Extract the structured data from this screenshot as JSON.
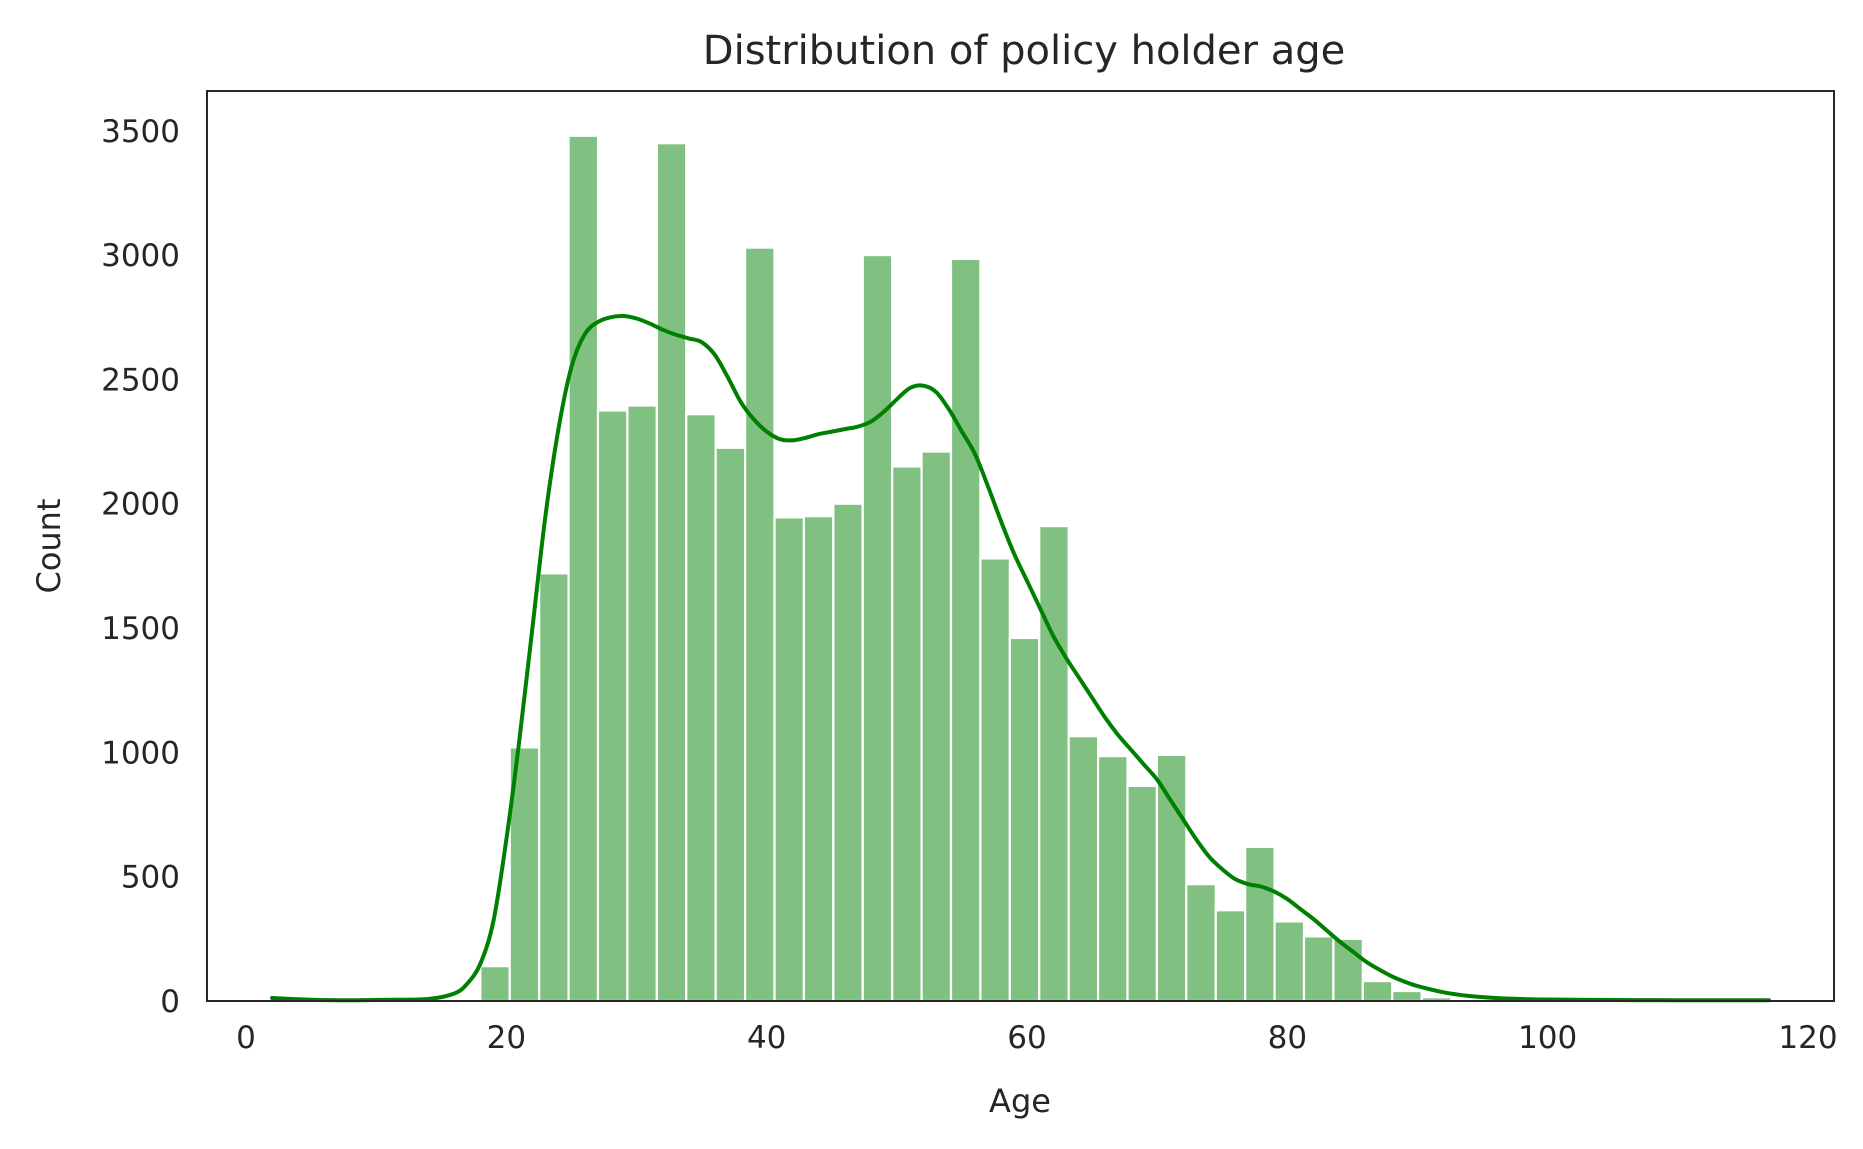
{
  "chart_data": {
    "type": "bar",
    "title": "Distribution of policy holder age",
    "xlabel": "Age",
    "ylabel": "Count",
    "xlim": [
      -3,
      122
    ],
    "ylim": [
      0,
      3660
    ],
    "xticks": [
      0,
      20,
      40,
      60,
      80,
      100,
      120
    ],
    "yticks": [
      0,
      500,
      1000,
      1500,
      2000,
      2500,
      3000,
      3500
    ],
    "grid": false,
    "bar_color": "#80c080",
    "kde_color": "#008000",
    "bin_width": 2.26,
    "bins": [
      {
        "start": 18.0,
        "count": 140
      },
      {
        "start": 20.26,
        "count": 1020
      },
      {
        "start": 22.52,
        "count": 1720
      },
      {
        "start": 24.78,
        "count": 3480
      },
      {
        "start": 27.04,
        "count": 2375
      },
      {
        "start": 29.3,
        "count": 2395
      },
      {
        "start": 31.56,
        "count": 3450
      },
      {
        "start": 33.82,
        "count": 2360
      },
      {
        "start": 36.08,
        "count": 2225
      },
      {
        "start": 38.34,
        "count": 3030
      },
      {
        "start": 40.6,
        "count": 1945
      },
      {
        "start": 42.86,
        "count": 1950
      },
      {
        "start": 45.12,
        "count": 2000
      },
      {
        "start": 47.38,
        "count": 3000
      },
      {
        "start": 49.64,
        "count": 2150
      },
      {
        "start": 51.9,
        "count": 2210
      },
      {
        "start": 54.16,
        "count": 2985
      },
      {
        "start": 56.42,
        "count": 1780
      },
      {
        "start": 58.68,
        "count": 1460
      },
      {
        "start": 60.94,
        "count": 1910
      },
      {
        "start": 63.2,
        "count": 1065
      },
      {
        "start": 65.46,
        "count": 985
      },
      {
        "start": 67.72,
        "count": 865
      },
      {
        "start": 69.98,
        "count": 990
      },
      {
        "start": 72.24,
        "count": 470
      },
      {
        "start": 74.5,
        "count": 365
      },
      {
        "start": 76.76,
        "count": 620
      },
      {
        "start": 79.02,
        "count": 320
      },
      {
        "start": 81.28,
        "count": 260
      },
      {
        "start": 83.54,
        "count": 250
      },
      {
        "start": 85.8,
        "count": 80
      },
      {
        "start": 88.06,
        "count": 40
      },
      {
        "start": 90.32,
        "count": 15
      },
      {
        "start": 92.58,
        "count": 5
      }
    ],
    "kde": {
      "x": [
        2,
        5,
        8,
        11,
        14,
        16,
        17,
        18,
        19,
        20,
        21,
        22,
        23,
        24,
        25,
        26,
        27,
        28,
        29,
        30,
        31,
        32,
        33,
        34,
        35,
        36,
        37,
        38,
        39,
        40,
        41,
        42,
        43,
        44,
        45,
        46,
        47,
        48,
        49,
        50,
        51,
        52,
        53,
        54,
        55,
        56,
        57,
        58,
        59,
        60,
        61,
        62,
        63,
        64,
        65,
        66,
        67,
        68,
        69,
        70,
        71,
        72,
        73,
        74,
        75,
        76,
        77,
        78,
        79,
        80,
        81,
        82,
        83,
        84,
        85,
        86,
        87,
        88,
        89,
        90,
        92,
        94,
        96,
        98,
        100,
        105,
        110,
        117
      ],
      "y": [
        12,
        5,
        3,
        5,
        8,
        30,
        70,
        150,
        320,
        650,
        1050,
        1500,
        1950,
        2300,
        2550,
        2680,
        2730,
        2750,
        2755,
        2745,
        2725,
        2700,
        2680,
        2665,
        2650,
        2600,
        2510,
        2410,
        2340,
        2290,
        2260,
        2255,
        2265,
        2280,
        2290,
        2300,
        2310,
        2330,
        2370,
        2420,
        2465,
        2475,
        2450,
        2380,
        2290,
        2200,
        2070,
        1930,
        1800,
        1690,
        1580,
        1470,
        1380,
        1300,
        1220,
        1140,
        1070,
        1010,
        950,
        890,
        810,
        730,
        650,
        580,
        530,
        490,
        470,
        460,
        440,
        410,
        370,
        330,
        285,
        240,
        200,
        160,
        128,
        100,
        78,
        60,
        35,
        20,
        12,
        8,
        6,
        4,
        3,
        3
      ]
    }
  }
}
